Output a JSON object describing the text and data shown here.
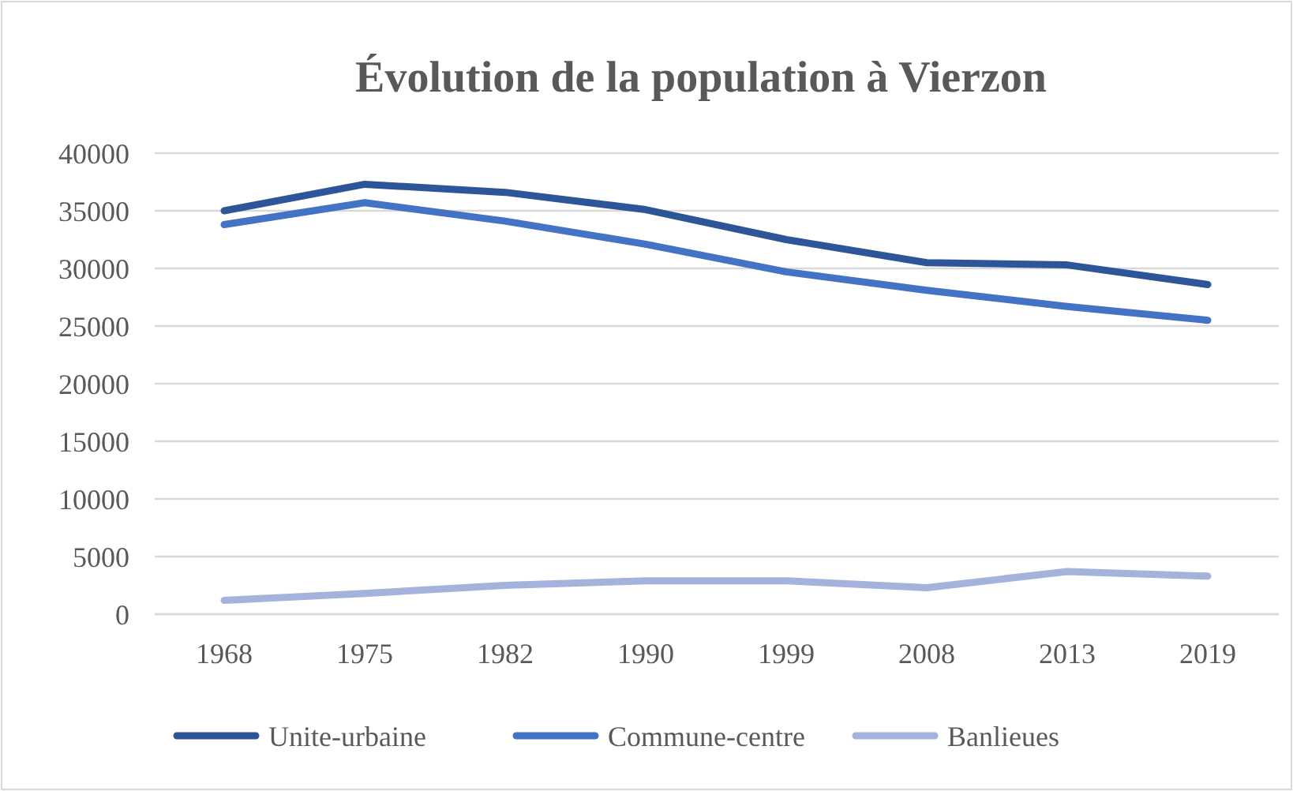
{
  "chart_data": {
    "type": "line",
    "title": "Évolution de la population à Vierzon",
    "categories": [
      "1968",
      "1975",
      "1982",
      "1990",
      "1999",
      "2008",
      "2013",
      "2019"
    ],
    "series": [
      {
        "name": "Unite-urbaine",
        "color": "#2e5597",
        "values": [
          35000,
          37300,
          36600,
          35100,
          32500,
          30500,
          30300,
          28600
        ]
      },
      {
        "name": "Commune-centre",
        "color": "#4472c4",
        "values": [
          33800,
          35700,
          34100,
          32100,
          29700,
          28100,
          26700,
          25500
        ]
      },
      {
        "name": "Banlieues",
        "color": "#a5b3dc",
        "values": [
          1200,
          1800,
          2500,
          2900,
          2900,
          2300,
          3700,
          3300
        ]
      }
    ],
    "ylim": [
      0,
      40000
    ],
    "yticks": [
      0,
      5000,
      10000,
      15000,
      20000,
      25000,
      30000,
      35000,
      40000
    ],
    "grid": "y",
    "legend": "bottom",
    "marker": "none",
    "line_style": "solid"
  }
}
